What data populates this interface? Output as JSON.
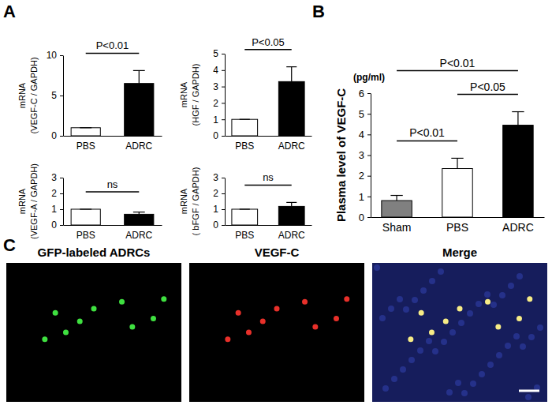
{
  "chart_data": [
    {
      "type": "bar",
      "categories": [
        "PBS",
        "ADRC"
      ],
      "values": [
        1,
        6.5
      ],
      "errors": [
        0,
        1.6
      ],
      "colors": [
        "#ffffff",
        "#000000"
      ],
      "ylabel": [
        "mRNA",
        "(VEGF-C / GAPDH)"
      ],
      "ylim": [
        0,
        10
      ],
      "yticks": [
        0,
        5,
        10
      ],
      "annotations": [
        {
          "text": "P<0.01",
          "between": [
            "PBS",
            "ADRC"
          ]
        }
      ]
    },
    {
      "type": "bar",
      "categories": [
        "PBS",
        "ADRC"
      ],
      "values": [
        1,
        3.3
      ],
      "errors": [
        0,
        0.9
      ],
      "colors": [
        "#ffffff",
        "#000000"
      ],
      "ylabel": [
        "mRNA",
        "(HGF / GAPDH)"
      ],
      "ylim": [
        0,
        5
      ],
      "yticks": [
        0,
        1,
        2,
        3,
        4,
        5
      ],
      "annotations": [
        {
          "text": "P<0.05",
          "between": [
            "PBS",
            "ADRC"
          ]
        }
      ]
    },
    {
      "type": "bar",
      "categories": [
        "PBS",
        "ADRC"
      ],
      "values": [
        1,
        0.68
      ],
      "errors": [
        0,
        0.14
      ],
      "colors": [
        "#ffffff",
        "#000000"
      ],
      "ylabel": [
        "mRNA",
        "(VEGF-A / GAPDH)"
      ],
      "ylim": [
        0,
        3
      ],
      "yticks": [
        0,
        1,
        2,
        3
      ],
      "annotations": [
        {
          "text": "ns",
          "between": [
            "PBS",
            "ADRC"
          ]
        }
      ]
    },
    {
      "type": "bar",
      "categories": [
        "PBS",
        "ADRC"
      ],
      "values": [
        1,
        1.18
      ],
      "errors": [
        0,
        0.25
      ],
      "colors": [
        "#ffffff",
        "#000000"
      ],
      "ylabel": [
        "mRNA",
        "( bFGF / GAPDH)"
      ],
      "ylim": [
        0,
        3
      ],
      "yticks": [
        0,
        1,
        2,
        3
      ],
      "annotations": [
        {
          "text": "ns",
          "between": [
            "PBS",
            "ADRC"
          ]
        }
      ]
    },
    {
      "type": "bar",
      "categories": [
        "Sham",
        "PBS",
        "ADRC"
      ],
      "values": [
        0.8,
        2.35,
        4.45
      ],
      "errors": [
        0.25,
        0.5,
        0.65
      ],
      "colors": [
        "#808080",
        "#ffffff",
        "#000000"
      ],
      "ylabel": [
        "Plasma level of VEGF-C"
      ],
      "ylim": [
        0,
        6
      ],
      "yticks": [
        0,
        1,
        2,
        3,
        4,
        5,
        6
      ],
      "annotations": [
        {
          "text": "(pg/ml)"
        },
        {
          "text": "P<0.01",
          "between": [
            "Sham",
            "PBS"
          ]
        },
        {
          "text": "P<0.05",
          "between": [
            "PBS",
            "ADRC"
          ]
        },
        {
          "text": "P<0.01",
          "between": [
            "Sham",
            "ADRC"
          ]
        }
      ]
    }
  ],
  "figure": {
    "panel_labels": [
      "A",
      "B",
      "C"
    ],
    "images": [
      {
        "title": "GFP-labeled ADRCs"
      },
      {
        "title": "VEGF-C"
      },
      {
        "title": "Merge"
      }
    ]
  }
}
